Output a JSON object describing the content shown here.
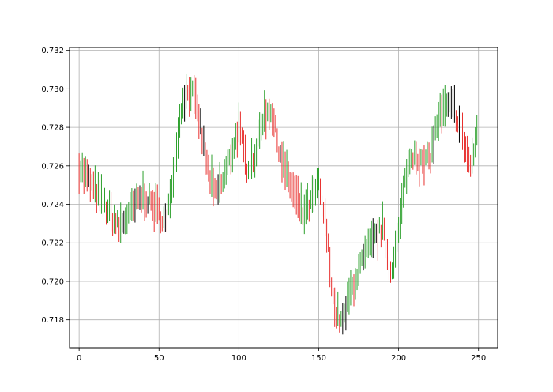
{
  "chart_data": {
    "type": "line",
    "title": "",
    "xlabel": "",
    "ylabel": "",
    "xlim": [
      -6,
      262
    ],
    "ylim": [
      0.71655,
      0.73215
    ],
    "grid": true,
    "legend": "none",
    "x_ticks": [
      0,
      50,
      100,
      150,
      200,
      250
    ],
    "x_tick_labels": [
      "0",
      "50",
      "100",
      "150",
      "200",
      "250"
    ],
    "y_ticks": [
      0.718,
      0.72,
      0.722,
      0.724,
      0.726,
      0.728,
      0.73,
      0.732
    ],
    "y_tick_labels": [
      "0.718",
      "0.720",
      "0.722",
      "0.724",
      "0.726",
      "0.728",
      "0.730",
      "0.732"
    ],
    "colors": {
      "up": "#2ca02c",
      "down": "#e8302e",
      "neutral": "#000000",
      "grid": "#b0b0b0"
    },
    "x": [
      0,
      25,
      40,
      48,
      55,
      60,
      65,
      70,
      75,
      80,
      85,
      90,
      95,
      100,
      105,
      110,
      115,
      120,
      125,
      130,
      135,
      140,
      145,
      150,
      155,
      160,
      165,
      170,
      175,
      180,
      185,
      190,
      195,
      200,
      205,
      210,
      215,
      220,
      225,
      230,
      235,
      240,
      245,
      249
    ],
    "series": [
      {
        "values": [
          0.726,
          0.7228,
          0.7245,
          0.7238,
          0.723,
          0.7265,
          0.7295,
          0.73,
          0.7285,
          0.726,
          0.7245,
          0.7252,
          0.7265,
          0.728,
          0.726,
          0.7265,
          0.7285,
          0.729,
          0.727,
          0.7255,
          0.7245,
          0.7235,
          0.724,
          0.725,
          0.7225,
          0.7185,
          0.7178,
          0.7195,
          0.7205,
          0.7215,
          0.7222,
          0.7228,
          0.7205,
          0.7225,
          0.7258,
          0.7268,
          0.726,
          0.7265,
          0.7285,
          0.729,
          0.729,
          0.7275,
          0.726,
          0.7275
        ]
      }
    ]
  }
}
